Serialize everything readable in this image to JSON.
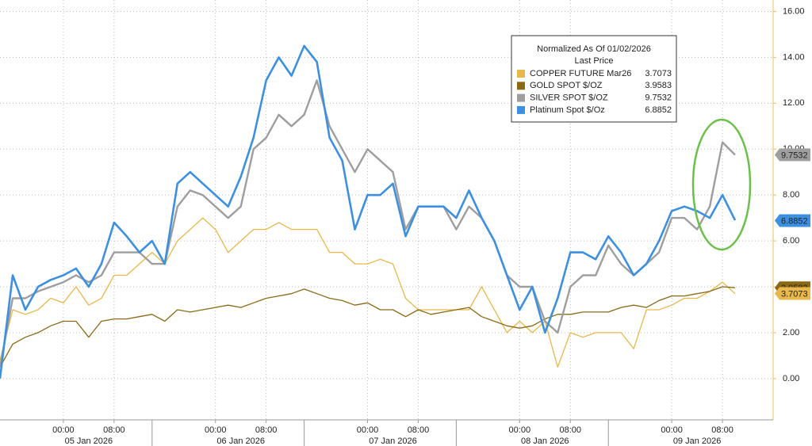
{
  "chart_data": {
    "type": "line",
    "legend_title": "Normalized As Of 01/02/2026",
    "legend_subtitle": "Last Price",
    "categories": [
      null,
      null,
      null,
      null,
      null,
      "00:00",
      null,
      null,
      null,
      "08:00",
      null,
      null,
      null,
      null,
      null,
      null,
      null,
      "00:00",
      null,
      null,
      null,
      "08:00",
      null,
      null,
      null,
      null,
      null,
      null,
      null,
      "00:00",
      null,
      null,
      null,
      "08:00",
      null,
      null,
      null,
      null,
      null,
      null,
      null,
      "00:00",
      null,
      null,
      null,
      "08:00",
      null,
      null,
      null,
      null,
      null,
      null,
      null,
      "00:00",
      null,
      null,
      null,
      "08:00",
      null
    ],
    "day_labels": [
      "05 Jan 2026",
      "06 Jan 2026",
      "07 Jan 2026",
      "08 Jan 2026",
      "09 Jan 2026"
    ],
    "series": [
      {
        "name": "COPPER FUTURE Mar26",
        "color": "#e8b84a",
        "last": 3.7073,
        "values": [
          0.8,
          3.0,
          2.8,
          3.0,
          3.5,
          3.3,
          4.0,
          3.2,
          3.5,
          4.5,
          4.5,
          5.0,
          5.5,
          5.0,
          6.0,
          6.5,
          7.0,
          6.5,
          5.5,
          6.0,
          6.5,
          6.5,
          6.8,
          6.5,
          6.5,
          6.5,
          5.5,
          5.5,
          5.0,
          5.0,
          5.2,
          5.0,
          3.5,
          3.0,
          3.0,
          3.0,
          3.0,
          3.0,
          4.0,
          3.0,
          2.0,
          2.5,
          2.0,
          2.5,
          0.5,
          2.0,
          1.8,
          2.0,
          2.0,
          2.0,
          1.3,
          3.0,
          3.0,
          3.2,
          3.5,
          3.5,
          3.8,
          4.2,
          3.7
        ]
      },
      {
        "name": "GOLD SPOT $/OZ",
        "color": "#8b6914",
        "last": 3.9583,
        "values": [
          0.5,
          1.5,
          1.8,
          2.0,
          2.3,
          2.5,
          2.5,
          1.8,
          2.5,
          2.6,
          2.6,
          2.7,
          2.8,
          2.5,
          3.0,
          2.9,
          3.0,
          3.1,
          3.2,
          3.1,
          3.3,
          3.5,
          3.6,
          3.7,
          3.9,
          3.7,
          3.5,
          3.4,
          3.2,
          3.3,
          3.0,
          3.0,
          2.7,
          3.0,
          2.8,
          2.9,
          3.0,
          3.1,
          2.7,
          2.5,
          2.3,
          2.2,
          2.3,
          2.6,
          2.8,
          2.8,
          2.9,
          2.9,
          2.9,
          3.1,
          3.2,
          3.1,
          3.4,
          3.6,
          3.6,
          3.7,
          3.8,
          4.0,
          3.96
        ]
      },
      {
        "name": "SILVER SPOT $/OZ",
        "color": "#9e9e9e",
        "last": 9.7532,
        "values": [
          0.5,
          3.5,
          3.5,
          3.8,
          4.0,
          4.2,
          4.5,
          4.2,
          4.5,
          5.5,
          5.5,
          5.5,
          5.0,
          5.0,
          7.5,
          8.2,
          8.0,
          7.5,
          7.0,
          7.5,
          10.0,
          10.5,
          11.5,
          11.0,
          11.5,
          13.0,
          11.0,
          10.0,
          9.0,
          10.0,
          9.5,
          9.0,
          6.5,
          7.5,
          7.5,
          7.5,
          6.5,
          7.5,
          7.0,
          6.0,
          4.5,
          4.0,
          4.0,
          2.5,
          2.0,
          4.0,
          4.5,
          4.5,
          5.8,
          5.0,
          4.5,
          5.0,
          5.5,
          7.0,
          7.0,
          6.5,
          7.5,
          10.3,
          9.75
        ]
      },
      {
        "name": "Platinum Spot $/Oz",
        "color": "#3d8fe0",
        "last": 6.8852,
        "values": [
          0.0,
          4.5,
          3.0,
          4.0,
          4.3,
          4.5,
          4.8,
          4.0,
          5.0,
          6.8,
          6.2,
          5.5,
          6.0,
          5.0,
          8.5,
          9.0,
          8.5,
          8.0,
          7.5,
          8.8,
          10.5,
          13.0,
          14.0,
          13.2,
          14.5,
          13.8,
          10.5,
          9.5,
          6.5,
          8.0,
          8.0,
          8.5,
          6.2,
          7.5,
          7.5,
          7.5,
          7.0,
          8.2,
          7.0,
          6.0,
          4.5,
          3.0,
          4.0,
          2.0,
          3.5,
          5.5,
          5.5,
          5.2,
          6.2,
          5.5,
          4.5,
          5.0,
          6.0,
          7.3,
          7.5,
          7.3,
          7.0,
          8.0,
          6.9
        ]
      }
    ],
    "ylim": [
      -1.8,
      16.5
    ],
    "yticks": [
      {
        "value": 0,
        "label": "0.00"
      },
      {
        "value": 2,
        "label": "2.00"
      },
      {
        "value": 4,
        "label": "4.00"
      },
      {
        "value": 6,
        "label": "6.00"
      },
      {
        "value": 8,
        "label": "8.00"
      },
      {
        "value": 10,
        "label": "10.00"
      },
      {
        "value": 12,
        "label": "12.00"
      },
      {
        "value": 14,
        "label": "14.00"
      },
      {
        "value": 16,
        "label": "16.00"
      }
    ],
    "grid": true
  }
}
